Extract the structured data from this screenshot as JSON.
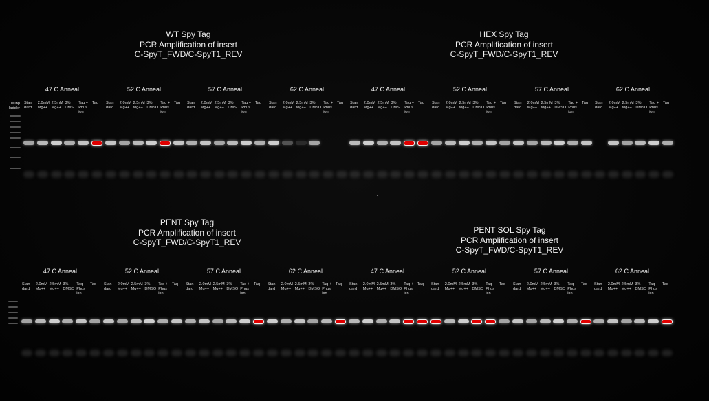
{
  "gels": [
    {
      "id": "wt",
      "title_lines": [
        "WT Spy Tag",
        "PCR Amplification of insert",
        "C-SpyT_FWD/C-SpyT1_REV"
      ],
      "anneals": [
        "47 C Anneal",
        "52 C Anneal",
        "57 C Anneal",
        "62 C Anneal"
      ]
    },
    {
      "id": "hex",
      "title_lines": [
        "HEX Spy Tag",
        "PCR Amplification of insert",
        "C-SpyT_FWD/C-SpyT1_REV"
      ],
      "anneals": [
        "47 C Anneal",
        "52 C Anneal",
        "57 C Anneal",
        "62 C Anneal"
      ]
    },
    {
      "id": "pent",
      "title_lines": [
        "PENT Spy Tag",
        "PCR Amplification of insert",
        "C-SpyT_FWD/C-SpyT1_REV"
      ],
      "anneals": [
        "47 C Anneal",
        "52 C Anneal",
        "57 C Anneal",
        "62 C Anneal"
      ]
    },
    {
      "id": "pentsol",
      "title_lines": [
        "PENT SOL Spy Tag",
        "PCR Amplification of insert",
        "C-SpyT_FWD/C-SpyT1_REV"
      ],
      "anneals": [
        "47 C Anneal",
        "52 C Anneal",
        "57 C Anneal",
        "62 C Anneal"
      ]
    }
  ],
  "ladder_label": "100bp\nladder",
  "lane_labels": [
    "Stan\ndard",
    "2.0mM\nMg++",
    "2.5mM\nMg++",
    "3%\nDMSO",
    "Taq +\nPhus\nion",
    "Taq"
  ],
  "colors": {
    "background": "#050505",
    "band": "#d9d9d9",
    "saturated_band": "#e00000"
  }
}
